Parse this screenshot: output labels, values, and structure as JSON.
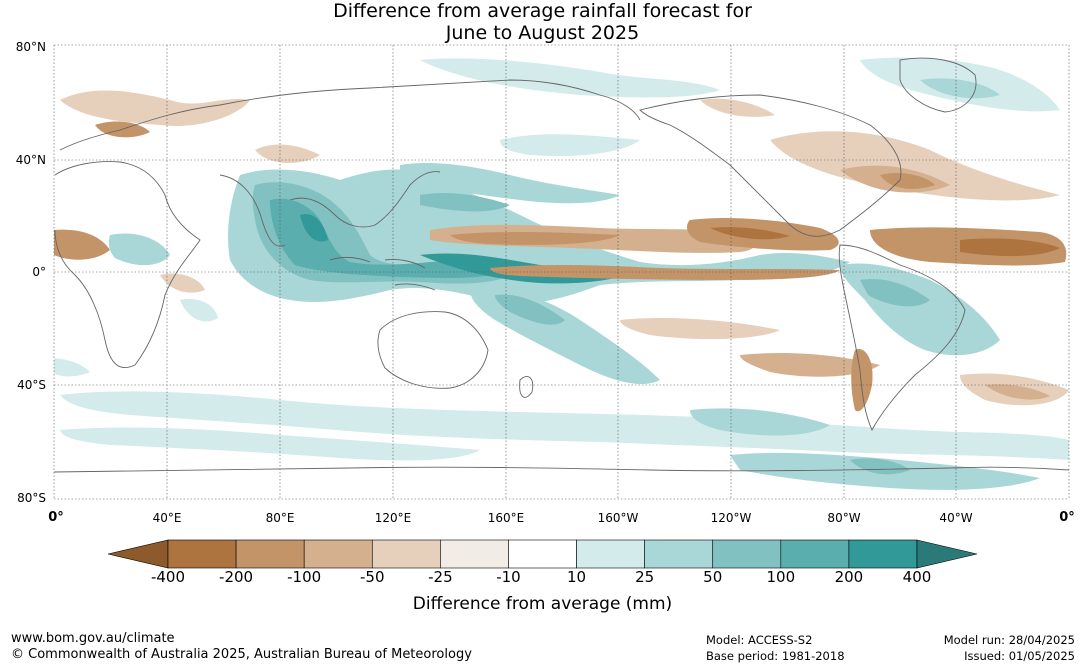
{
  "title": {
    "line1": "Difference from average rainfall forecast for",
    "line2": "June to August 2025"
  },
  "axes": {
    "lat_labels": [
      "80°N",
      "40°N",
      "0°",
      "40°S",
      "80°S"
    ],
    "lon_labels": [
      "0°",
      "40°E",
      "80°E",
      "120°E",
      "160°E",
      "160°W",
      "120°W",
      "80°W",
      "40°W",
      "0°"
    ]
  },
  "colorbar": {
    "ticks": [
      "-400",
      "-200",
      "-100",
      "-50",
      "-25",
      "-10",
      "10",
      "25",
      "50",
      "100",
      "200",
      "400"
    ],
    "colors": [
      "#8c5a2b",
      "#ae7440",
      "#c39467",
      "#d5b08f",
      "#e6d0bc",
      "#f2ece7",
      "#ffffff",
      "#d3ebea",
      "#a9d6d6",
      "#82c1c1",
      "#5aaeae",
      "#329999",
      "#2a7a7a"
    ],
    "title": "Difference from average (mm)"
  },
  "footer": {
    "url": "www.bom.gov.au/climate",
    "copyright": "© Commonwealth of Australia 2025, Australian Bureau of Meteorology",
    "model": "Model: ACCESS-S2",
    "base_period": "Base period: 1981-2018",
    "model_run": "Model run: 28/04/2025",
    "issued": "Issued: 01/05/2025"
  }
}
